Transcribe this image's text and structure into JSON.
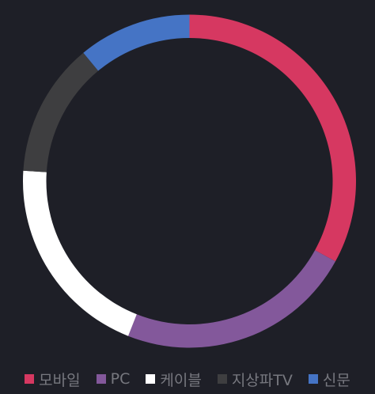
{
  "chart_data": {
    "type": "pie",
    "style": "donut",
    "title": "",
    "categories": [
      "모바일",
      "PC",
      "케이블",
      "지상파TV",
      "신문"
    ],
    "values": [
      33,
      23,
      20,
      13,
      11
    ],
    "colors": [
      "#d63861",
      "#83589b",
      "#ffffff",
      "#3e3e40",
      "#4574c5"
    ],
    "legend_position": "bottom"
  }
}
